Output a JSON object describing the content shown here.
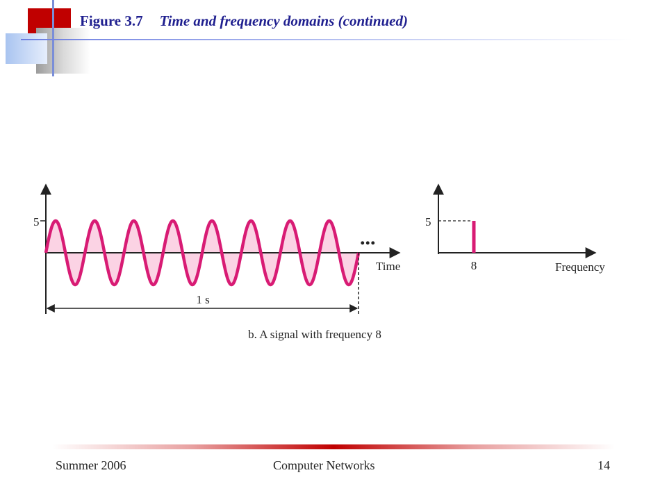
{
  "slide": {
    "figure_label": "Figure 3.7",
    "title": "Time and frequency domains (continued)"
  },
  "time_plot": {
    "y_tick": "5",
    "x_label": "Time",
    "duration_label": "1 s",
    "continuation": "...",
    "cycles": 8,
    "amplitude": 5
  },
  "freq_plot": {
    "y_tick": "5",
    "x_tick": "8",
    "x_label": "Frequency",
    "frequency": 8,
    "amplitude": 5
  },
  "caption": "b. A signal with frequency 8",
  "colors": {
    "signal": "#d81b74",
    "fill": "#fbd3e4",
    "title": "#1f1f8f"
  },
  "footer": {
    "left": "Summer 2006",
    "center": "Computer Networks",
    "page": "14"
  }
}
